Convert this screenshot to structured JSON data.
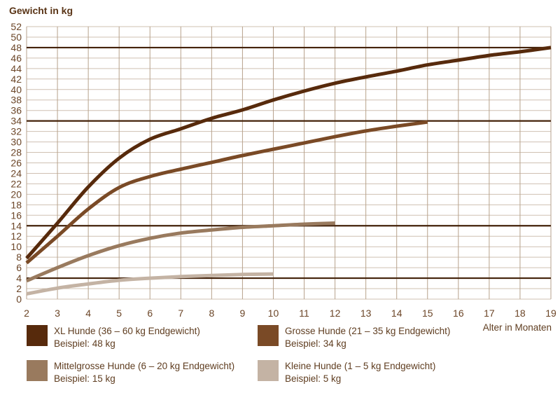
{
  "chart": {
    "y_axis_title": "Gewicht in kg",
    "x_axis_title": "Alter in Monaten",
    "colors": {
      "grid_vertical": "#b7a28c",
      "grid_horizontal": "#cfc0b2",
      "reference_line": "#43220a",
      "text": "#6b4527",
      "title_text": "#5a3517"
    }
  },
  "chart_data": {
    "type": "line",
    "title": "Gewicht in kg",
    "xlabel": "Alter in Monaten",
    "ylabel": "Gewicht in kg",
    "xlim": [
      2,
      19
    ],
    "ylim": [
      0,
      52
    ],
    "x_ticks": [
      2,
      3,
      4,
      5,
      6,
      7,
      8,
      9,
      10,
      11,
      12,
      13,
      14,
      15,
      16,
      17,
      18,
      19
    ],
    "y_ticks": [
      0,
      2,
      4,
      6,
      8,
      10,
      12,
      14,
      16,
      18,
      20,
      22,
      24,
      26,
      28,
      30,
      32,
      34,
      36,
      38,
      40,
      42,
      44,
      46,
      48,
      50,
      52
    ],
    "grid": true,
    "legend_position": "bottom",
    "reference_lines_kg": [
      48,
      34,
      14,
      4
    ],
    "series": [
      {
        "name": "XL Hunde (36 – 60 kg Endgewicht)",
        "example": "Beispiel: 48 kg",
        "color": "#572a0c",
        "x": [
          2,
          3,
          4,
          5,
          6,
          7,
          8,
          9,
          10,
          11,
          12,
          13,
          14,
          15,
          16,
          17,
          18,
          19
        ],
        "values": [
          7.8,
          14.5,
          21.4,
          26.9,
          30.5,
          32.5,
          34.5,
          36.1,
          38.0,
          39.7,
          41.2,
          42.4,
          43.5,
          44.7,
          45.6,
          46.5,
          47.2,
          48.0
        ]
      },
      {
        "name": "Grosse Hunde (21 – 35 kg Endgewicht)",
        "example": "Beispiel: 34 kg",
        "color": "#7a4a26",
        "x": [
          2,
          3,
          4,
          5,
          6,
          7,
          8,
          9,
          10,
          11,
          12,
          13,
          14,
          15
        ],
        "values": [
          6.9,
          12.0,
          17.2,
          21.3,
          23.4,
          24.8,
          26.1,
          27.4,
          28.6,
          29.8,
          31.0,
          32.1,
          33.0,
          33.8
        ]
      },
      {
        "name": "Mittelgrosse Hunde (6 – 20 kg Endgewicht)",
        "example": "Beispiel: 15 kg",
        "color": "#997a5e",
        "x": [
          2,
          3,
          4,
          5,
          6,
          7,
          8,
          9,
          10,
          11,
          12
        ],
        "values": [
          3.5,
          6.0,
          8.3,
          10.2,
          11.6,
          12.6,
          13.2,
          13.7,
          14.0,
          14.3,
          14.5
        ]
      },
      {
        "name": "Kleine Hunde (1 – 5 kg Endgewicht)",
        "example": "Beispiel: 5 kg",
        "color": "#c4b3a4",
        "x": [
          2,
          3,
          4,
          5,
          6,
          7,
          8,
          9,
          10
        ],
        "values": [
          1.0,
          2.1,
          2.9,
          3.6,
          4.0,
          4.3,
          4.5,
          4.7,
          4.8
        ]
      }
    ]
  }
}
